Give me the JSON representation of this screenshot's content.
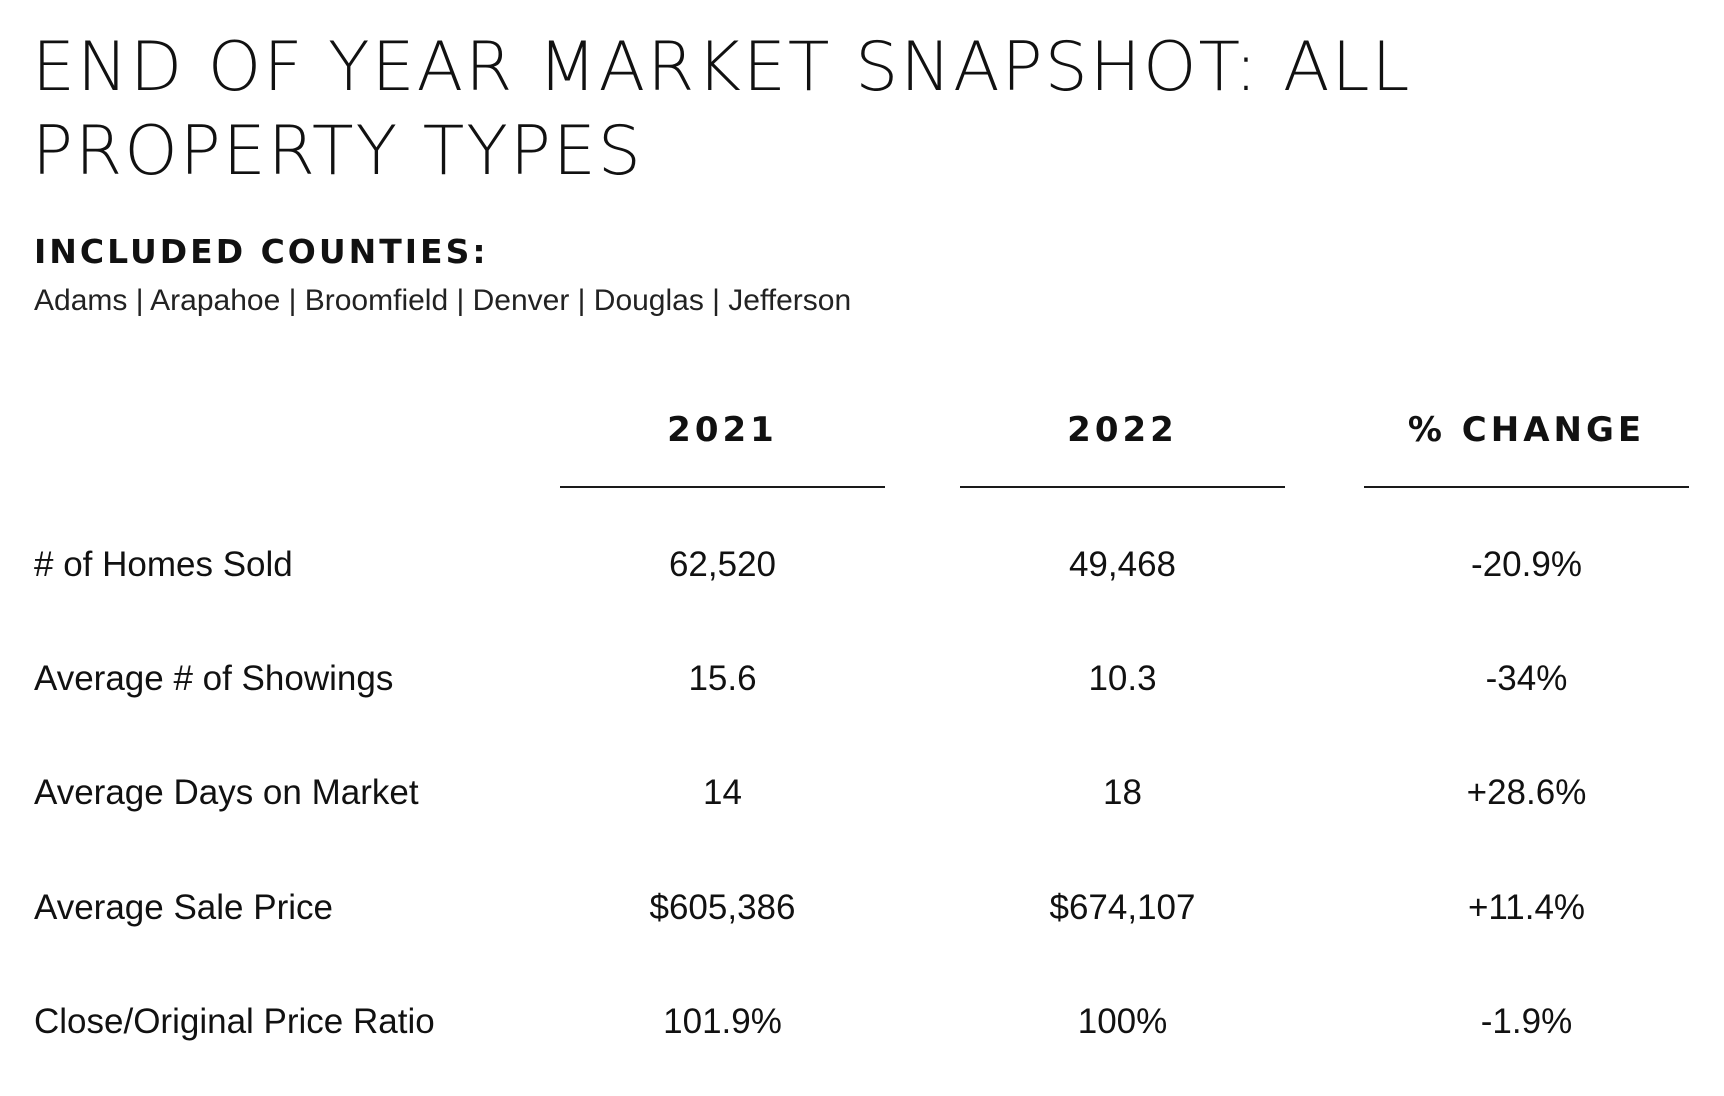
{
  "header": {
    "title": "END OF YEAR MARKET SNAPSHOT: ALL PROPERTY TYPES"
  },
  "counties": {
    "heading": "INCLUDED COUNTIES:",
    "list": "Adams | Arapahoe | Broomfield | Denver | Douglas | Jefferson"
  },
  "table": {
    "columns": [
      "2021",
      "2022",
      "% CHANGE"
    ],
    "rows": [
      {
        "label": "# of Homes Sold",
        "values": [
          "62,520",
          "49,468",
          "-20.9%"
        ]
      },
      {
        "label": "Average # of Showings",
        "values": [
          "15.6",
          "10.3",
          "-34%"
        ]
      },
      {
        "label": "Average Days on Market",
        "values": [
          "14",
          "18",
          "+28.6%"
        ]
      },
      {
        "label": "Average Sale Price",
        "values": [
          "$605,386",
          "$674,107",
          "+11.4%"
        ]
      },
      {
        "label": "Close/Original Price Ratio",
        "values": [
          "101.9%",
          "100%",
          "-1.9%"
        ]
      }
    ]
  }
}
